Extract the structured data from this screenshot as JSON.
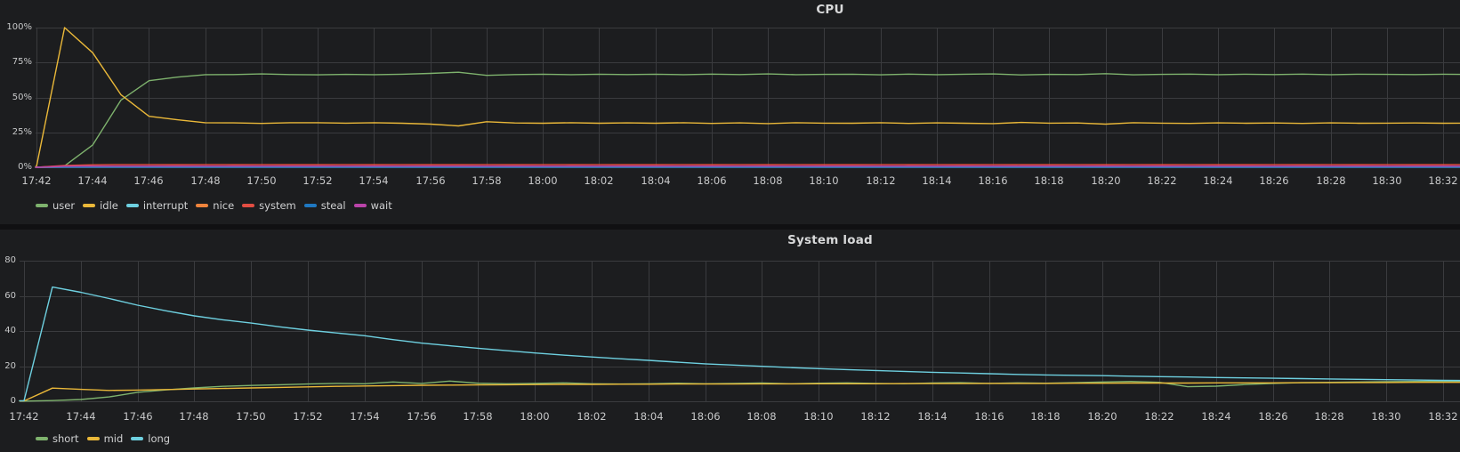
{
  "theme": {
    "page_bg": "#101012",
    "panel_bg": "#1c1d1f",
    "grid_color": "#3a3b3e",
    "text_color": "#c8c9ca",
    "title_color": "#d8d9da",
    "legend_color": "#d0d1d2"
  },
  "chart_data": [
    {
      "type": "line",
      "title": "CPU",
      "x_start": "17:42",
      "sample_interval_minutes": 1,
      "x_tick_every_minutes": 2,
      "x_ticks": [
        "17:42",
        "17:44",
        "17:46",
        "17:48",
        "17:50",
        "17:52",
        "17:54",
        "17:56",
        "17:58",
        "18:00",
        "18:02",
        "18:04",
        "18:06",
        "18:08",
        "18:10",
        "18:12",
        "18:14",
        "18:16",
        "18:18",
        "18:20",
        "18:22",
        "18:24",
        "18:26",
        "18:28",
        "18:30",
        "18:32"
      ],
      "y_ticks": [
        "0%",
        "25%",
        "50%",
        "75%",
        "100%"
      ],
      "ylim": [
        0,
        100
      ],
      "legend_position": "bottom-left",
      "series": [
        {
          "name": "user",
          "color": "#7EB26D",
          "values": [
            0,
            1,
            16,
            48,
            62,
            64.5,
            66.3,
            66.4,
            66.8,
            66.4,
            66.2,
            66.5,
            66.3,
            66.6,
            67.2,
            68.0,
            65.8,
            66.4,
            66.6,
            66.3,
            66.6,
            66.4,
            66.6,
            66.3,
            66.7,
            66.4,
            66.8,
            66.3,
            66.5,
            66.6,
            66.2,
            66.7,
            66.3,
            66.6,
            66.8,
            66.1,
            66.5,
            66.4,
            67.0,
            66.2,
            66.5,
            66.7,
            66.3,
            66.6,
            66.4,
            66.7,
            66.3,
            66.6,
            66.5,
            66.4,
            66.6,
            66.5
          ]
        },
        {
          "name": "idle",
          "color": "#EAB839",
          "values": [
            0.5,
            100,
            82,
            52,
            36.5,
            34,
            31.9,
            31.8,
            31.4,
            31.9,
            31.9,
            31.6,
            31.9,
            31.5,
            30.9,
            29.6,
            32.6,
            31.7,
            31.5,
            31.9,
            31.5,
            31.8,
            31.5,
            31.9,
            31.4,
            31.8,
            31.3,
            31.9,
            31.6,
            31.5,
            31.9,
            31.4,
            31.8,
            31.5,
            31.3,
            32.1,
            31.6,
            31.7,
            30.9,
            31.9,
            31.6,
            31.4,
            31.8,
            31.5,
            31.7,
            31.4,
            31.8,
            31.5,
            31.6,
            31.7,
            31.5,
            31.6
          ]
        },
        {
          "name": "interrupt",
          "color": "#6ED0E0",
          "values": [
            0,
            0.05,
            0.05,
            0.05,
            0.05,
            0.05,
            0.05,
            0.05,
            0.05,
            0.05,
            0.05,
            0.05,
            0.05,
            0.05,
            0.05,
            0.05,
            0.05,
            0.05,
            0.05,
            0.05,
            0.05,
            0.05,
            0.05,
            0.05,
            0.05,
            0.05,
            0.05,
            0.05,
            0.05,
            0.05,
            0.05,
            0.05,
            0.05,
            0.05,
            0.05,
            0.05,
            0.05,
            0.05,
            0.05,
            0.05,
            0.05,
            0.05,
            0.05,
            0.05,
            0.05,
            0.05,
            0.05,
            0.05,
            0.05,
            0.05,
            0.05,
            0.05
          ]
        },
        {
          "name": "nice",
          "color": "#EF843C",
          "values": [
            0,
            0.1,
            0.1,
            0.1,
            0.1,
            0.1,
            0.1,
            0.1,
            0.1,
            0.1,
            0.1,
            0.1,
            0.1,
            0.1,
            0.1,
            0.1,
            0.1,
            0.1,
            0.1,
            0.1,
            0.1,
            0.1,
            0.1,
            0.1,
            0.1,
            0.1,
            0.1,
            0.1,
            0.1,
            0.1,
            0.1,
            0.1,
            0.1,
            0.1,
            0.1,
            0.1,
            0.1,
            0.1,
            0.1,
            0.1,
            0.1,
            0.1,
            0.1,
            0.1,
            0.1,
            0.1,
            0.1,
            0.1,
            0.1,
            0.1,
            0.1,
            0.1
          ]
        },
        {
          "name": "system",
          "color": "#E24D42",
          "values": [
            0,
            1.3,
            1.8,
            2.0,
            2.0,
            1.9,
            2.0,
            1.9,
            2.0,
            1.9,
            1.9,
            2.0,
            1.9,
            2.0,
            1.9,
            1.9,
            2.0,
            1.9,
            2.0,
            1.9,
            2.0,
            1.9,
            1.9,
            2.0,
            1.9,
            2.0,
            1.9,
            2.0,
            1.9,
            1.9,
            2.0,
            1.9,
            2.0,
            1.9,
            2.0,
            1.9,
            1.9,
            2.0,
            1.9,
            2.0,
            1.9,
            2.0,
            1.9,
            1.9,
            2.0,
            1.9,
            2.0,
            1.9,
            2.0,
            1.9,
            1.9,
            2.0
          ]
        },
        {
          "name": "steal",
          "color": "#1F78C1",
          "values": [
            0,
            0.05,
            0.05,
            0.05,
            0.05,
            0.05,
            0.05,
            0.05,
            0.05,
            0.05,
            0.05,
            0.05,
            0.05,
            0.05,
            0.05,
            0.05,
            0.05,
            0.05,
            0.05,
            0.05,
            0.05,
            0.05,
            0.05,
            0.05,
            0.05,
            0.05,
            0.05,
            0.05,
            0.05,
            0.05,
            0.05,
            0.05,
            0.05,
            0.05,
            0.05,
            0.05,
            0.05,
            0.05,
            0.05,
            0.05,
            0.05,
            0.05,
            0.05,
            0.05,
            0.05,
            0.05,
            0.05,
            0.05,
            0.05,
            0.05,
            0.05,
            0.05
          ]
        },
        {
          "name": "wait",
          "color": "#BA43A9",
          "values": [
            0,
            0.7,
            0.8,
            0.8,
            0.8,
            0.8,
            0.8,
            0.8,
            0.8,
            0.8,
            0.8,
            0.8,
            0.8,
            0.8,
            0.8,
            0.8,
            0.8,
            0.8,
            0.8,
            0.8,
            0.8,
            0.8,
            0.8,
            0.8,
            0.8,
            0.8,
            0.8,
            0.8,
            0.8,
            0.8,
            0.8,
            0.8,
            0.8,
            0.8,
            0.8,
            0.8,
            0.8,
            0.8,
            0.8,
            0.8,
            0.8,
            0.8,
            0.8,
            0.8,
            0.8,
            0.8,
            0.8,
            0.8,
            0.8,
            0.8,
            0.8,
            0.8
          ]
        }
      ]
    },
    {
      "type": "line",
      "title": "System load",
      "x_start": "17:42",
      "sample_interval_minutes": 1,
      "x_tick_every_minutes": 2,
      "x_ticks": [
        "17:42",
        "17:44",
        "17:46",
        "17:48",
        "17:50",
        "17:52",
        "17:54",
        "17:56",
        "17:58",
        "18:00",
        "18:02",
        "18:04",
        "18:06",
        "18:08",
        "18:10",
        "18:12",
        "18:14",
        "18:16",
        "18:18",
        "18:20",
        "18:22",
        "18:24",
        "18:26",
        "18:28",
        "18:30",
        "18:32"
      ],
      "y_ticks": [
        "0",
        "20",
        "40",
        "60",
        "80"
      ],
      "ylim": [
        0,
        80
      ],
      "legend_position": "bottom-left",
      "series": [
        {
          "name": "short",
          "color": "#7EB26D",
          "values": [
            0.1,
            0.4,
            1.0,
            2.5,
            5.1,
            6.5,
            7.6,
            8.5,
            9.0,
            9.4,
            9.8,
            10.2,
            10.0,
            11.0,
            10.2,
            11.5,
            10.3,
            10.0,
            10.2,
            10.5,
            10.0,
            9.8,
            10.0,
            10.3,
            10.0,
            10.2,
            10.4,
            10.0,
            10.3,
            10.5,
            10.2,
            10.0,
            10.4,
            10.6,
            10.2,
            10.5,
            10.3,
            10.6,
            11.0,
            11.3,
            10.8,
            8.3,
            8.6,
            9.5,
            10.2,
            10.6,
            10.8,
            11.0,
            11.2,
            11.3,
            11.4,
            11.4
          ]
        },
        {
          "name": "mid",
          "color": "#EAB839",
          "values": [
            0.2,
            7.5,
            6.8,
            6.2,
            6.4,
            6.7,
            7.0,
            7.3,
            7.6,
            7.9,
            8.2,
            8.5,
            8.7,
            8.9,
            9.1,
            9.2,
            9.3,
            9.4,
            9.5,
            9.6,
            9.6,
            9.7,
            9.7,
            9.8,
            9.8,
            9.8,
            9.9,
            9.9,
            10.0,
            10.0,
            10.0,
            10.1,
            10.1,
            10.1,
            10.2,
            10.2,
            10.2,
            10.3,
            10.3,
            10.4,
            10.4,
            10.4,
            10.5,
            10.5,
            10.5,
            10.6,
            10.6,
            10.7,
            10.7,
            10.8,
            10.8,
            10.8
          ]
        },
        {
          "name": "long",
          "color": "#6ED0E0",
          "values": [
            0.3,
            65,
            62,
            58.5,
            54.7,
            51.5,
            48.6,
            46.4,
            44.5,
            42.4,
            40.5,
            38.9,
            37.3,
            35.1,
            33.1,
            31.6,
            30.2,
            28.8,
            27.5,
            26.3,
            25.2,
            24.2,
            23.3,
            22.3,
            21.3,
            20.6,
            19.9,
            19.2,
            18.6,
            18.0,
            17.5,
            17.0,
            16.5,
            16.1,
            15.7,
            15.3,
            15.0,
            14.8,
            14.6,
            14.3,
            14.0,
            13.8,
            13.5,
            13.3,
            13.1,
            12.9,
            12.7,
            12.5,
            12.3,
            12.1,
            11.9,
            11.8
          ]
        }
      ]
    }
  ]
}
